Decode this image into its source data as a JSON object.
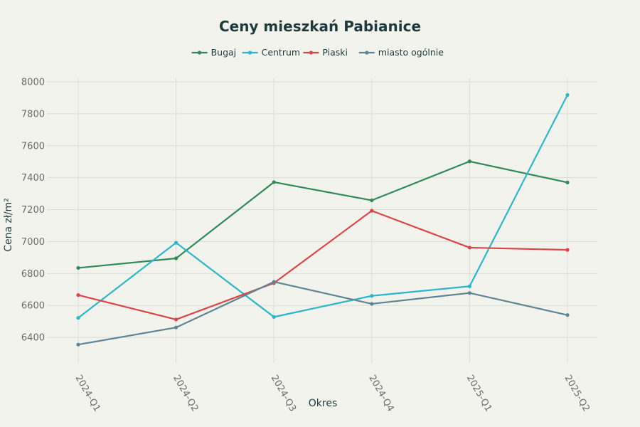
{
  "chart_data": {
    "type": "line",
    "title": "Ceny mieszkań Pabianice",
    "xlabel": "Okres",
    "ylabel": "Cena zł/m²",
    "categories": [
      "2024-Q1",
      "2024-Q2",
      "2024-Q3",
      "2024-Q4",
      "2025-Q1",
      "2025-Q2"
    ],
    "y_ticks": [
      "6400",
      "6600",
      "6800",
      "7000",
      "7200",
      "7400",
      "7600",
      "7800",
      "8000"
    ],
    "ylim": [
      6240,
      8000
    ],
    "grid": true,
    "legend_position": "top-center",
    "series": [
      {
        "name": "Bugaj",
        "color": "#2e8b57",
        "values": [
          6835,
          6895,
          7372,
          7258,
          7502,
          7370
        ]
      },
      {
        "name": "Centrum",
        "color": "#2ab7ca",
        "values": [
          6522,
          6993,
          6528,
          6660,
          6720,
          7918
        ]
      },
      {
        "name": "Piaski",
        "color": "#db4545",
        "values": [
          6665,
          6512,
          6740,
          7193,
          6962,
          6948
        ]
      },
      {
        "name": "miasto ogólnie",
        "color": "#5f8593",
        "values": [
          6355,
          6462,
          6748,
          6610,
          6678,
          6540
        ]
      }
    ]
  }
}
